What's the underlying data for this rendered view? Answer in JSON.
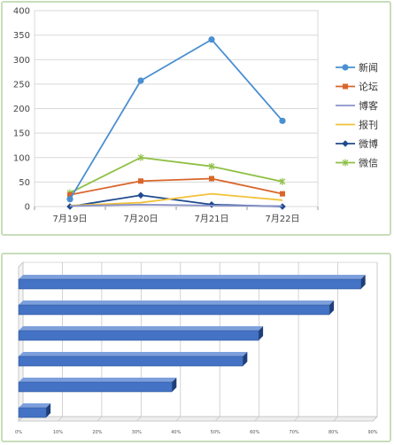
{
  "chart_data": [
    {
      "type": "line",
      "categories": [
        "7月19日",
        "7月20日",
        "7月21日",
        "7月22日"
      ],
      "ylim": [
        0,
        400
      ],
      "yticks": [
        0,
        50,
        100,
        150,
        200,
        250,
        300,
        350,
        400
      ],
      "grid": true,
      "legend": "right",
      "series": [
        {
          "name": "新闻",
          "values": [
            15,
            257,
            341,
            175
          ],
          "color": "#4a8fd1",
          "marker": "circle"
        },
        {
          "name": "论坛",
          "values": [
            24,
            52,
            57,
            26
          ],
          "color": "#d9662b",
          "marker": "square"
        },
        {
          "name": "博客",
          "values": [
            1,
            4,
            2,
            1
          ],
          "color": "#8a93c8",
          "marker": "none"
        },
        {
          "name": "报刊",
          "values": [
            2,
            8,
            26,
            13
          ],
          "color": "#f2c23a",
          "marker": "none"
        },
        {
          "name": "微博",
          "values": [
            0,
            23,
            4,
            0
          ],
          "color": "#1f4b8f",
          "marker": "diamond"
        },
        {
          "name": "微信",
          "values": [
            28,
            100,
            82,
            51
          ],
          "color": "#8ec045",
          "marker": "star"
        }
      ]
    },
    {
      "type": "bar",
      "orientation": "horizontal",
      "values": [
        87,
        79,
        61,
        57,
        39,
        7
      ],
      "xlim": [
        0,
        90
      ],
      "xticks": [
        "0%",
        "10%",
        "20%",
        "30%",
        "40%",
        "50%",
        "60%",
        "70%",
        "80%",
        "90%"
      ],
      "grid": true,
      "color": "#4472c4"
    }
  ]
}
